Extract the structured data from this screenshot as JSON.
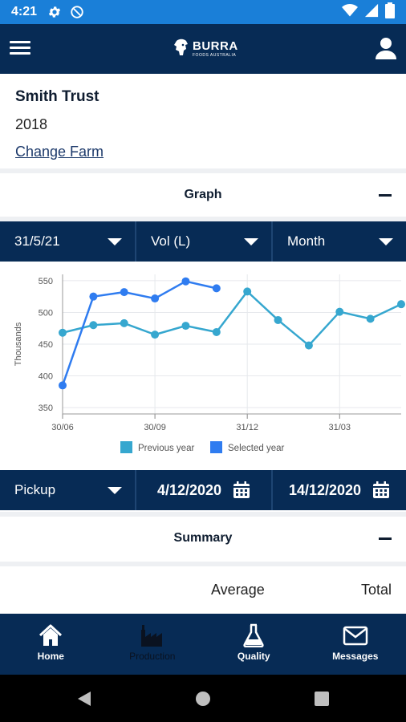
{
  "status_bar": {
    "time": "4:21",
    "icons": [
      "settings-gear-icon",
      "do-not-disturb-icon",
      "wifi-icon",
      "cellular-signal-icon",
      "battery-icon"
    ]
  },
  "app_bar": {
    "menu_icon": "hamburger-menu-icon",
    "logo": {
      "name": "BURRA",
      "subtitle": "FOODS AUSTRALIA"
    },
    "user_icon": "user-icon"
  },
  "farm": {
    "name": "Smith Trust",
    "year": "2018",
    "change_link": "Change Farm"
  },
  "graph_section": {
    "title": "Graph",
    "collapse_icon": "minus-icon",
    "selectors": [
      {
        "label": "31/5/21"
      },
      {
        "label": "Vol (L)"
      },
      {
        "label": "Month"
      }
    ]
  },
  "chart_data": {
    "type": "line",
    "ylabel": "Thousands",
    "ylim": [
      340,
      560
    ],
    "yticks": [
      350,
      400,
      450,
      500,
      550
    ],
    "x_tick_labels": [
      {
        "label": "30/06",
        "index": 0
      },
      {
        "label": "30/09",
        "index": 3
      },
      {
        "label": "31/12",
        "index": 6
      },
      {
        "label": "31/03",
        "index": 9
      }
    ],
    "x_count": 12,
    "grid": true,
    "legend_position": "bottom",
    "series": [
      {
        "name": "Previous year",
        "color": "#36a7cf",
        "values": [
          468,
          480,
          483,
          465,
          479,
          469,
          533,
          488,
          448,
          501,
          490,
          513
        ]
      },
      {
        "name": "Selected year",
        "color": "#2f7cf0",
        "values": [
          385,
          525,
          532,
          522,
          549,
          538
        ]
      }
    ]
  },
  "filters": {
    "type": {
      "label": "Pickup"
    },
    "start_date": {
      "label": "4/12/2020",
      "icon": "calendar-icon"
    },
    "end_date": {
      "label": "14/12/2020",
      "icon": "calendar-icon"
    }
  },
  "summary_section": {
    "title": "Summary",
    "collapse_icon": "minus-icon",
    "columns": [
      "Average",
      "Total"
    ]
  },
  "bottom_nav": {
    "items": [
      {
        "label": "Home",
        "icon": "home-icon",
        "active": true
      },
      {
        "label": "Production",
        "icon": "factory-icon",
        "active": false
      },
      {
        "label": "Quality",
        "icon": "flask-icon",
        "active": true
      },
      {
        "label": "Messages",
        "icon": "envelope-icon",
        "active": true
      }
    ]
  },
  "system_nav": {
    "icons": [
      "back-icon",
      "home-circle-icon",
      "recents-icon"
    ]
  }
}
